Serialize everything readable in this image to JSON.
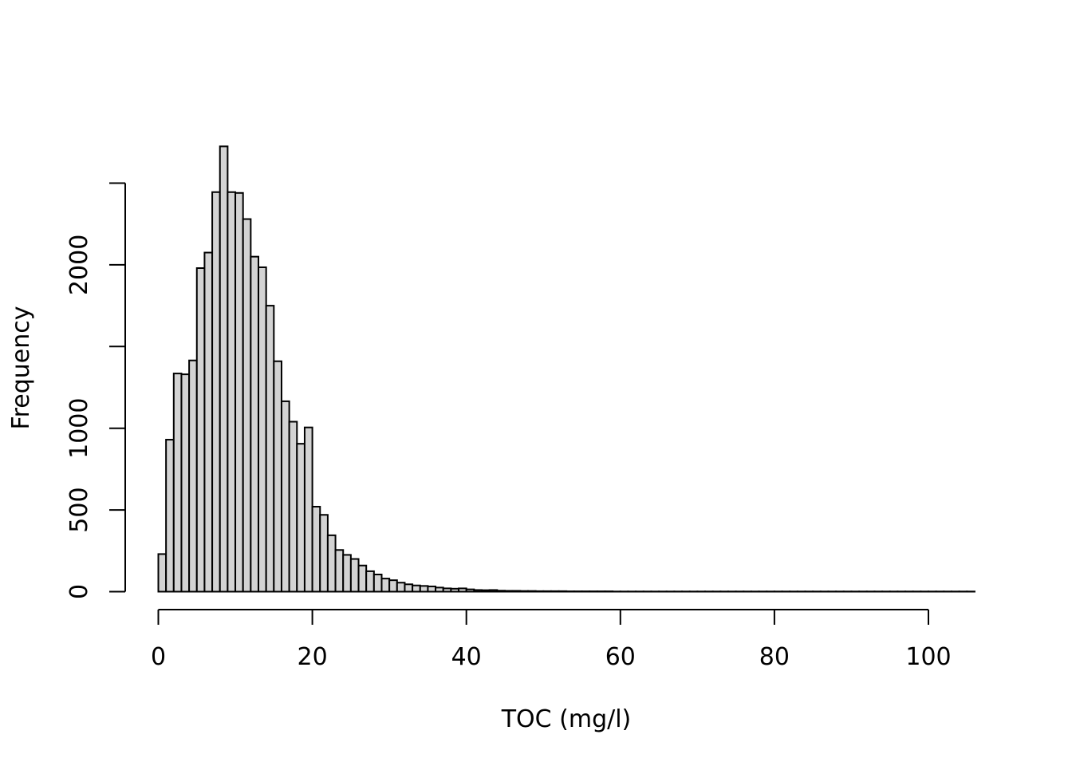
{
  "chart_data": {
    "type": "bar",
    "subtype": "histogram",
    "title": "",
    "xlabel": "TOC (mg/l)",
    "ylabel": "Frequency",
    "xlim": [
      0,
      106
    ],
    "ylim": [
      0,
      2550
    ],
    "bin_width": 1,
    "x_ticks": [
      0,
      20,
      40,
      60,
      80,
      100
    ],
    "x_tick_labels": [
      "0",
      "20",
      "40",
      "60",
      "80",
      "100"
    ],
    "y_ticks": [
      0,
      500,
      1000,
      1500,
      2000,
      2500
    ],
    "y_tick_labels": [
      "0",
      "500",
      "1000",
      "",
      "2000",
      ""
    ],
    "bin_edges_start": 0,
    "values": [
      230,
      930,
      1335,
      1330,
      1415,
      1980,
      2075,
      2445,
      2725,
      2445,
      2440,
      2280,
      2050,
      1985,
      1750,
      1410,
      1165,
      1040,
      905,
      1005,
      520,
      470,
      345,
      255,
      225,
      200,
      160,
      125,
      105,
      80,
      70,
      55,
      45,
      38,
      35,
      32,
      25,
      20,
      18,
      20,
      14,
      10,
      9,
      10,
      6,
      5,
      5,
      4,
      4,
      3,
      3,
      3,
      3,
      2,
      2,
      2,
      2,
      2,
      2,
      1,
      1,
      1,
      1,
      1,
      1,
      1,
      1,
      1,
      1,
      1,
      1,
      1,
      1,
      1,
      1,
      1,
      1,
      1,
      1,
      1,
      1,
      1,
      1,
      1,
      1,
      1,
      1,
      1,
      1,
      1,
      1,
      1,
      1,
      1,
      1,
      1,
      1,
      1,
      1,
      1,
      1,
      1,
      1,
      1,
      1,
      1
    ],
    "colors": {
      "bar_fill": "#d3d3d3",
      "bar_stroke": "#000000",
      "background": "#ffffff"
    },
    "grid": false,
    "legend": "none"
  }
}
